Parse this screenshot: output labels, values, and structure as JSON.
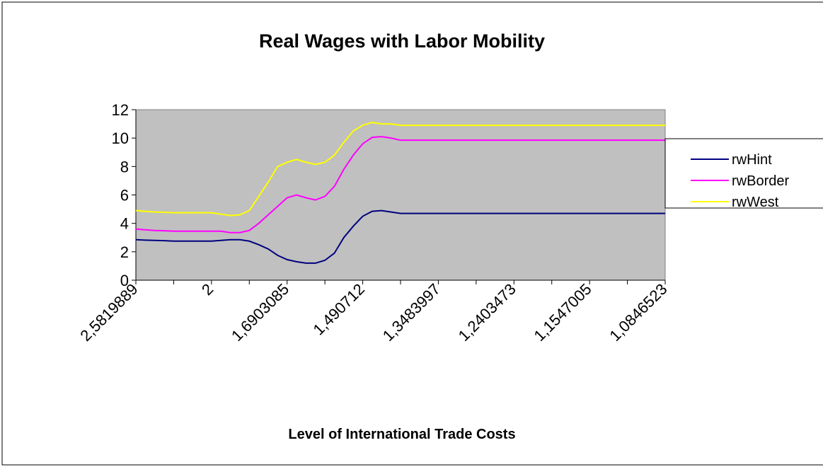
{
  "chart_data": {
    "type": "line",
    "title": "Real Wages with Labor Mobility",
    "x_label": "Level of International Trade Costs",
    "categories": [
      "2,5819889",
      null,
      null,
      null,
      null,
      null,
      null,
      null,
      "2",
      null,
      null,
      null,
      null,
      null,
      null,
      null,
      "1,6903085",
      null,
      null,
      null,
      null,
      null,
      null,
      null,
      "1,490712",
      null,
      null,
      null,
      null,
      null,
      null,
      null,
      "1,3483997",
      null,
      null,
      null,
      null,
      null,
      null,
      null,
      "1,2403473",
      null,
      null,
      null,
      null,
      null,
      null,
      null,
      "1,1547005",
      null,
      null,
      null,
      null,
      null,
      null,
      null,
      "1,0846523"
    ],
    "series": [
      {
        "name": "rwHint",
        "color": "#000080",
        "values": [
          2.85,
          2.82,
          2.8,
          2.78,
          2.75,
          2.75,
          2.75,
          2.75,
          2.75,
          2.8,
          2.85,
          2.85,
          2.75,
          2.5,
          2.2,
          1.75,
          1.45,
          1.3,
          1.2,
          1.2,
          1.4,
          1.9,
          3.0,
          3.8,
          4.5,
          4.85,
          4.9,
          4.8,
          4.7,
          4.7,
          4.7,
          4.7,
          4.7,
          4.7,
          4.7,
          4.7,
          4.7,
          4.7,
          4.7,
          4.7,
          4.7,
          4.7,
          4.7,
          4.7,
          4.7,
          4.7,
          4.7,
          4.7,
          4.7,
          4.7,
          4.7,
          4.7,
          4.7,
          4.7,
          4.7,
          4.7,
          4.7
        ]
      },
      {
        "name": "rwBorder",
        "color": "#ff00ff",
        "values": [
          3.6,
          3.55,
          3.5,
          3.48,
          3.45,
          3.45,
          3.45,
          3.45,
          3.45,
          3.45,
          3.35,
          3.35,
          3.5,
          4.0,
          4.6,
          5.2,
          5.8,
          6.0,
          5.8,
          5.65,
          5.9,
          6.6,
          7.8,
          8.8,
          9.6,
          10.05,
          10.1,
          10.0,
          9.85,
          9.85,
          9.85,
          9.85,
          9.85,
          9.85,
          9.85,
          9.85,
          9.85,
          9.85,
          9.85,
          9.85,
          9.85,
          9.85,
          9.85,
          9.85,
          9.85,
          9.85,
          9.85,
          9.85,
          9.85,
          9.85,
          9.85,
          9.85,
          9.85,
          9.85,
          9.85,
          9.85,
          9.85
        ]
      },
      {
        "name": "rwWest",
        "color": "#ffff00",
        "values": [
          4.9,
          4.85,
          4.8,
          4.78,
          4.75,
          4.75,
          4.75,
          4.75,
          4.75,
          4.65,
          4.55,
          4.6,
          4.9,
          5.9,
          6.9,
          8.0,
          8.3,
          8.5,
          8.3,
          8.15,
          8.3,
          8.8,
          9.7,
          10.5,
          10.9,
          11.1,
          11.0,
          11.0,
          10.9,
          10.9,
          10.9,
          10.9,
          10.9,
          10.9,
          10.9,
          10.9,
          10.9,
          10.9,
          10.9,
          10.9,
          10.9,
          10.9,
          10.9,
          10.9,
          10.9,
          10.9,
          10.9,
          10.9,
          10.9,
          10.9,
          10.9,
          10.9,
          10.9,
          10.9,
          10.9,
          10.9,
          10.9
        ]
      }
    ],
    "ylim": [
      0,
      12
    ],
    "yticks": [
      0,
      2,
      4,
      6,
      8,
      10,
      12
    ],
    "plot_background": "#c0c0c0",
    "legend": "right"
  }
}
